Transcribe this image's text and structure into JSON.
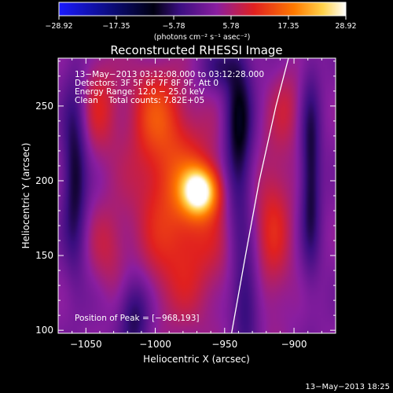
{
  "chart_data": {
    "type": "heatmap",
    "title": "Reconstructed RHESSI Image",
    "xlabel": "Heliocentric X (arcsec)",
    "ylabel": "Heliocentric Y (arcsec)",
    "xlim": [
      -1070,
      -870
    ],
    "ylim": [
      98,
      282
    ],
    "x_ticks": [
      -1050,
      -1000,
      -950,
      -900
    ],
    "x_tick_labels": [
      "−1050",
      "−1000",
      "−950",
      "−900"
    ],
    "y_ticks": [
      100,
      150,
      200,
      250
    ],
    "y_tick_labels": [
      "100",
      "150",
      "200",
      "250"
    ],
    "colorbar": {
      "min": -28.92,
      "max": 28.92,
      "ticks": [
        -28.92,
        -17.35,
        -5.78,
        5.78,
        17.35,
        28.92
      ],
      "tick_labels": [
        "−28.92",
        "−17.35",
        "−5.78",
        "5.78",
        "17.35",
        "28.92"
      ],
      "units_label": "(photons cm⁻² s⁻¹ asec⁻²)"
    },
    "annotations": [
      "13−May−2013 03:12:08.000 to 03:12:28.000",
      "Detectors: 3F 5F 6F 7F 8F 9F, Att 0",
      "Energy Range: 12.0 − 25.0 keV",
      "Clean    Total counts: 7.82E+05"
    ],
    "peak_label": "Position of Peak = [−968,193]",
    "peak": {
      "x": -968,
      "y": 193
    },
    "limb_curve": {
      "x": [
        -945,
        -935,
        -925,
        -913,
        -904
      ],
      "y": [
        98,
        150,
        200,
        250,
        282
      ]
    },
    "blobs": [
      {
        "x": -968,
        "y": 193,
        "sx": 9,
        "sy": 11,
        "amp": 24
      },
      {
        "x": -985,
        "y": 205,
        "sx": 22,
        "sy": 30,
        "amp": 9
      },
      {
        "x": -1000,
        "y": 248,
        "sx": 14,
        "sy": 22,
        "amp": 9
      },
      {
        "x": -980,
        "y": 150,
        "sx": 24,
        "sy": 34,
        "amp": 8
      },
      {
        "x": -1040,
        "y": 250,
        "sx": 10,
        "sy": 25,
        "amp": 7
      },
      {
        "x": -1035,
        "y": 155,
        "sx": 10,
        "sy": 22,
        "amp": 5
      },
      {
        "x": -915,
        "y": 170,
        "sx": 10,
        "sy": 40,
        "amp": 8
      },
      {
        "x": -905,
        "y": 250,
        "sx": 8,
        "sy": 20,
        "amp": 5
      },
      {
        "x": -1058,
        "y": 205,
        "sx": 6,
        "sy": 45,
        "amp": -11
      },
      {
        "x": -1015,
        "y": 110,
        "sx": 8,
        "sy": 20,
        "amp": -10
      },
      {
        "x": -940,
        "y": 230,
        "sx": 7,
        "sy": 45,
        "amp": -13
      },
      {
        "x": -935,
        "y": 120,
        "sx": 7,
        "sy": 25,
        "amp": -9
      },
      {
        "x": -888,
        "y": 205,
        "sx": 5,
        "sy": 45,
        "amp": -11
      },
      {
        "x": -955,
        "y": 275,
        "sx": 9,
        "sy": 10,
        "amp": -6
      }
    ],
    "grid": false,
    "colormap": "blue-black-purple-red-yellow-white"
  },
  "footer": {
    "timestamp": "13−May−2013 18:25"
  }
}
